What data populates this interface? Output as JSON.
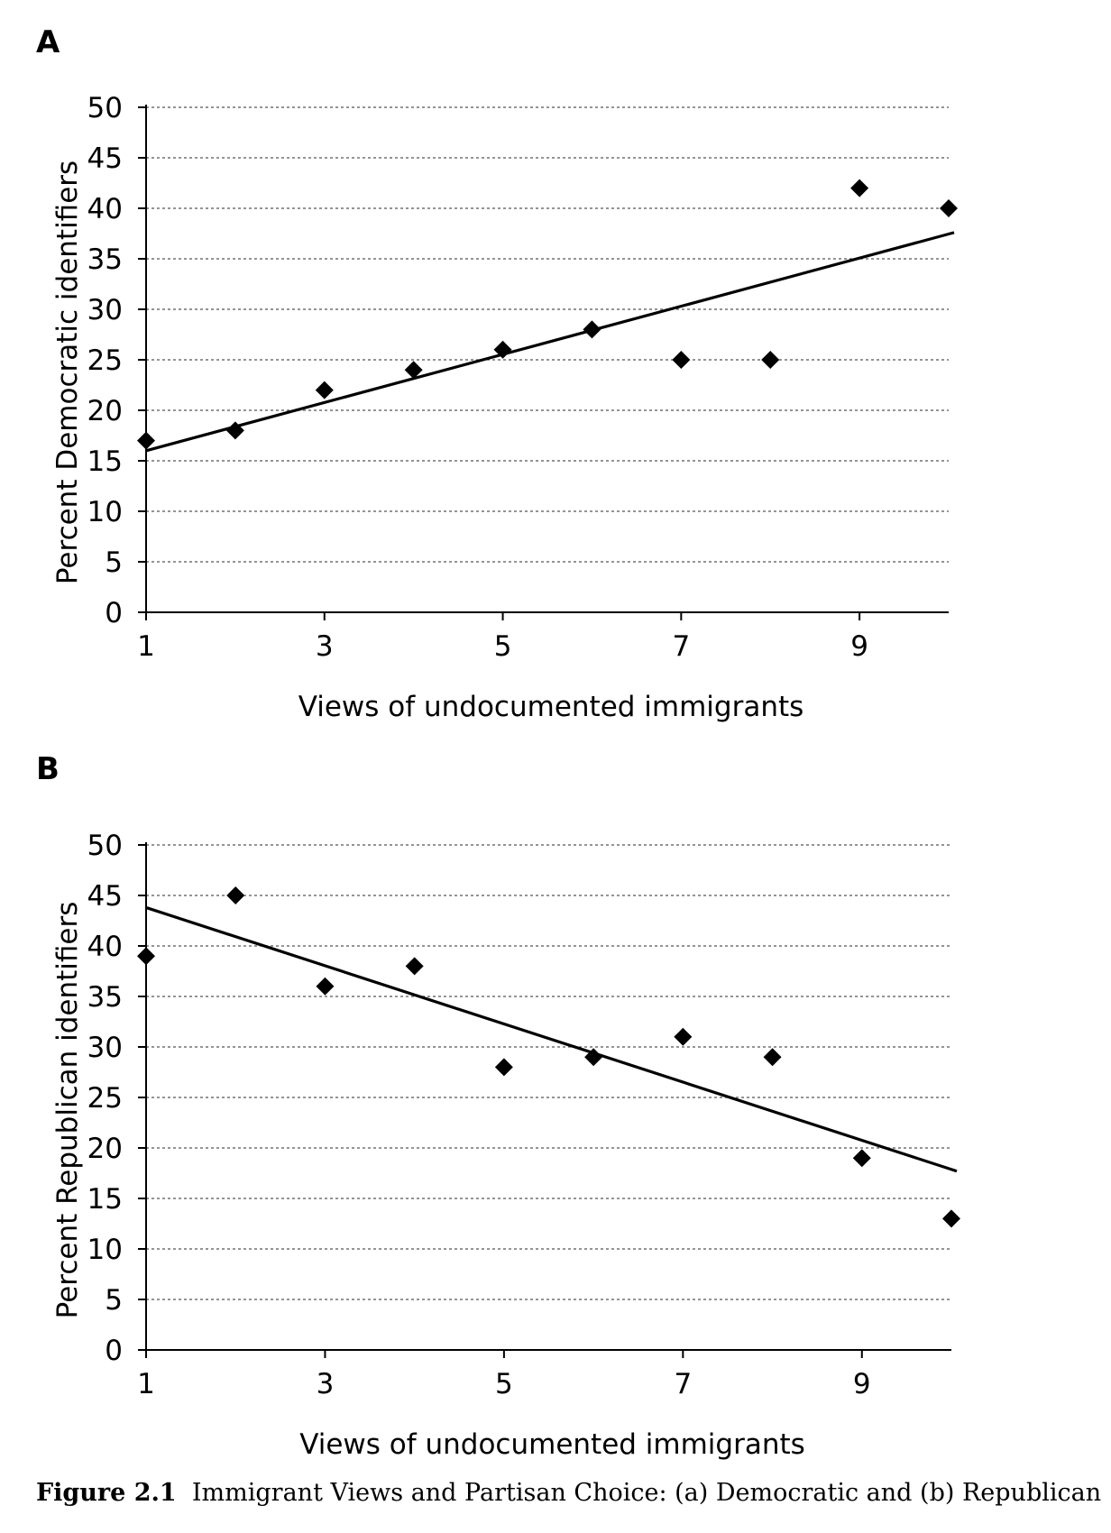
{
  "caption": {
    "label": "Figure 2.1",
    "text": "Immigrant Views and Partisan Choice: (a) Democratic and (b) Republican"
  },
  "chart_data": [
    {
      "panel": "A",
      "type": "scatter",
      "xlabel": "Views of undocumented immigrants",
      "ylabel": "Percent Democratic identifiers",
      "xlim": [
        1,
        10
      ],
      "ylim": [
        0,
        50
      ],
      "xticks": [
        1,
        3,
        5,
        7,
        9
      ],
      "yticks": [
        0,
        5,
        10,
        15,
        20,
        25,
        30,
        35,
        40,
        45,
        50
      ],
      "grid": true,
      "x": [
        1,
        2,
        3,
        4,
        5,
        6,
        7,
        8,
        9,
        10
      ],
      "y": [
        17,
        18,
        22,
        24,
        26,
        28,
        25,
        25,
        42,
        40
      ],
      "trendline": {
        "x": [
          1,
          10
        ],
        "y": [
          16,
          37.6
        ]
      }
    },
    {
      "panel": "B",
      "type": "scatter",
      "xlabel": "Views of undocumented immigrants",
      "ylabel": "Percent Republican identifiers",
      "xlim": [
        1,
        10
      ],
      "ylim": [
        0,
        50
      ],
      "xticks": [
        1,
        3,
        5,
        7,
        9
      ],
      "yticks": [
        0,
        5,
        10,
        15,
        20,
        25,
        30,
        35,
        40,
        45,
        50
      ],
      "grid": true,
      "x": [
        1,
        2,
        3,
        4,
        5,
        6,
        7,
        8,
        9,
        10
      ],
      "y": [
        39,
        45,
        36,
        38,
        28,
        29,
        31,
        29,
        19,
        13
      ],
      "trendline": {
        "x": [
          1,
          10
        ],
        "y": [
          43.8,
          17.7
        ]
      }
    }
  ]
}
